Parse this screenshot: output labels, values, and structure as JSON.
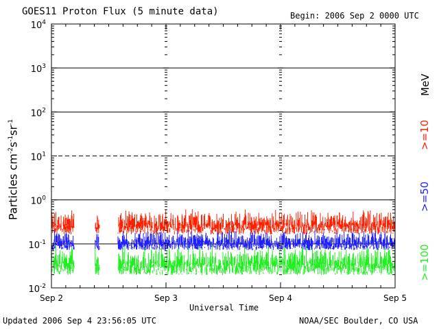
{
  "header": {
    "title": "GOES11 Proton Flux (5 minute data)",
    "begin": "Begin: 2006 Sep 2 0000 UTC"
  },
  "footer": {
    "updated": "Updated 2006 Sep  4 23:56:05 UTC",
    "credit": "NOAA/SEC Boulder, CO USA"
  },
  "chart_data": {
    "type": "line",
    "title": "GOES11 Proton Flux (5 minute data)",
    "xlabel": "Universal Time",
    "ylabel": "Particles cm-2s-1sr-1",
    "yscale": "log",
    "ylim": [
      0.01,
      10000
    ],
    "x_ticks": [
      "Sep 2",
      "Sep 3",
      "Sep 4",
      "Sep 5"
    ],
    "xlim": [
      0,
      3
    ],
    "x_unit": "days since 2006 Sep 2 0000 UTC",
    "y_ticks": [
      "10^-2",
      "10^-1",
      "10^0",
      "10^1",
      "10^2",
      "10^3",
      "10^4"
    ],
    "energy_unit": "MeV",
    "series": [
      {
        "name": ">=10",
        "color": "#ff2000",
        "typical_range": [
          0.13,
          0.6
        ]
      },
      {
        "name": ">=50",
        "color": "#2020ff",
        "typical_range": [
          0.06,
          0.2
        ]
      },
      {
        "name": ">=100",
        "color": "#22ee22",
        "typical_range": [
          0.015,
          0.09
        ]
      }
    ],
    "data_gaps": [
      [
        0.2,
        0.38
      ],
      [
        0.42,
        0.58
      ]
    ],
    "threshold_lines": [
      {
        "value": 10,
        "style": "dashed"
      },
      {
        "value": 1,
        "style": "solid"
      },
      {
        "value": 0.1,
        "style": "solid"
      }
    ],
    "grid": true
  },
  "legend": {
    "mev": "MeV",
    "e10": ">=10",
    "e50": ">=50",
    "e100": ">=100"
  }
}
